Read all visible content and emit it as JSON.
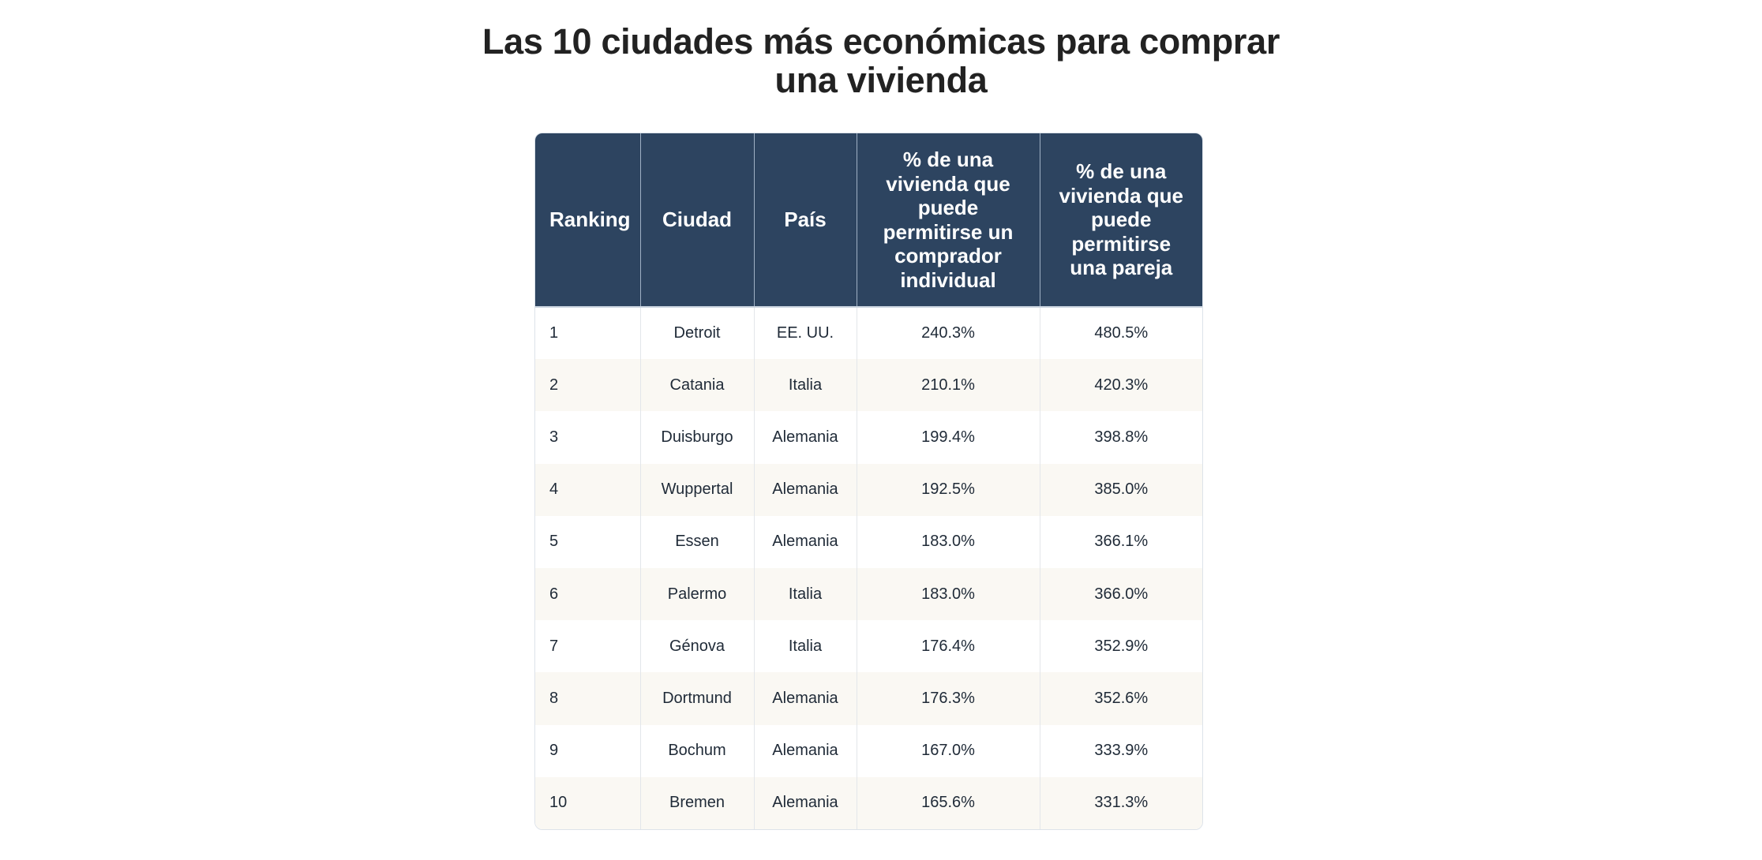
{
  "title": "Las 10 ciudades más económicas para comprar una vivienda",
  "colors": {
    "header_bg": "#2d4460",
    "header_text": "#ffffff",
    "row_alt_bg": "#faf8f3",
    "text": "#1f2a37"
  },
  "table": {
    "headers": [
      "Ranking",
      "Ciudad",
      "País",
      "% de una vivienda que puede permitirse un comprador individual",
      "% de una vivienda que puede permitirse una pareja"
    ],
    "rows": [
      {
        "ranking": "1",
        "ciudad": "Detroit",
        "pais": "EE. UU.",
        "individual": "240.3%",
        "pareja": "480.5%"
      },
      {
        "ranking": "2",
        "ciudad": "Catania",
        "pais": "Italia",
        "individual": "210.1%",
        "pareja": "420.3%"
      },
      {
        "ranking": "3",
        "ciudad": "Duisburgo",
        "pais": "Alemania",
        "individual": "199.4%",
        "pareja": "398.8%"
      },
      {
        "ranking": "4",
        "ciudad": "Wuppertal",
        "pais": "Alemania",
        "individual": "192.5%",
        "pareja": "385.0%"
      },
      {
        "ranking": "5",
        "ciudad": "Essen",
        "pais": "Alemania",
        "individual": "183.0%",
        "pareja": "366.1%"
      },
      {
        "ranking": "6",
        "ciudad": "Palermo",
        "pais": "Italia",
        "individual": "183.0%",
        "pareja": "366.0%"
      },
      {
        "ranking": "7",
        "ciudad": "Génova",
        "pais": "Italia",
        "individual": "176.4%",
        "pareja": "352.9%"
      },
      {
        "ranking": "8",
        "ciudad": "Dortmund",
        "pais": "Alemania",
        "individual": "176.3%",
        "pareja": "352.6%"
      },
      {
        "ranking": "9",
        "ciudad": "Bochum",
        "pais": "Alemania",
        "individual": "167.0%",
        "pareja": "333.9%"
      },
      {
        "ranking": "10",
        "ciudad": "Bremen",
        "pais": "Alemania",
        "individual": "165.6%",
        "pareja": "331.3%"
      }
    ]
  }
}
